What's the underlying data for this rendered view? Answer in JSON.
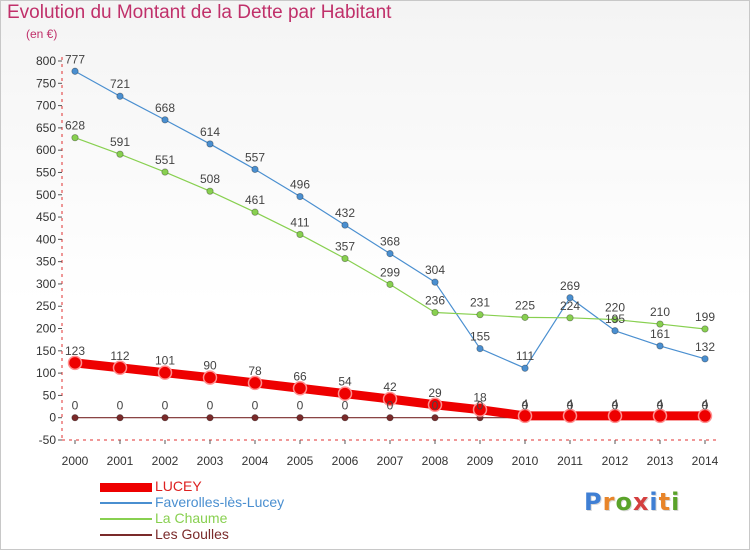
{
  "chart_data": {
    "type": "line",
    "title": "Evolution du Montant de la Dette par Habitant",
    "subtitle": "(en €)",
    "x": [
      "2000",
      "2001",
      "2002",
      "2003",
      "2004",
      "2005",
      "2006",
      "2007",
      "2008",
      "2009",
      "2010",
      "2011",
      "2012",
      "2013",
      "2014"
    ],
    "yticks": [
      -50,
      0,
      50,
      100,
      150,
      200,
      250,
      300,
      350,
      400,
      450,
      500,
      550,
      600,
      650,
      700,
      750,
      800
    ],
    "ylim": [
      -50,
      800
    ],
    "grid": false,
    "legend_position": "bottom-left",
    "series": [
      {
        "name": "LUCEY",
        "color": "#ee0000",
        "values": [
          123,
          112,
          101,
          90,
          78,
          66,
          54,
          42,
          29,
          18,
          4,
          4,
          4,
          4,
          4
        ]
      },
      {
        "name": "Faverolles-lès-Lucey",
        "color": "#4a8fd0",
        "values": [
          777,
          721,
          668,
          614,
          557,
          496,
          432,
          368,
          304,
          155,
          111,
          269,
          195,
          161,
          132
        ]
      },
      {
        "name": "La Chaume",
        "color": "#88d050",
        "values": [
          628,
          591,
          551,
          508,
          461,
          411,
          357,
          299,
          236,
          231,
          225,
          224,
          220,
          210,
          199
        ]
      },
      {
        "name": "Les Goulles",
        "color": "#7a2a2a",
        "values": [
          0,
          0,
          0,
          0,
          0,
          0,
          0,
          0,
          0,
          0,
          0,
          0,
          0,
          0,
          0
        ]
      }
    ]
  },
  "brand": {
    "letters": [
      "P",
      "r",
      "o",
      "x",
      "i",
      "t",
      "i"
    ],
    "colors": [
      "#3f7fd4",
      "#e8852a",
      "#5aa32a",
      "#d43f3f",
      "#3f7fd4",
      "#e8852a",
      "#5aa32a"
    ]
  }
}
